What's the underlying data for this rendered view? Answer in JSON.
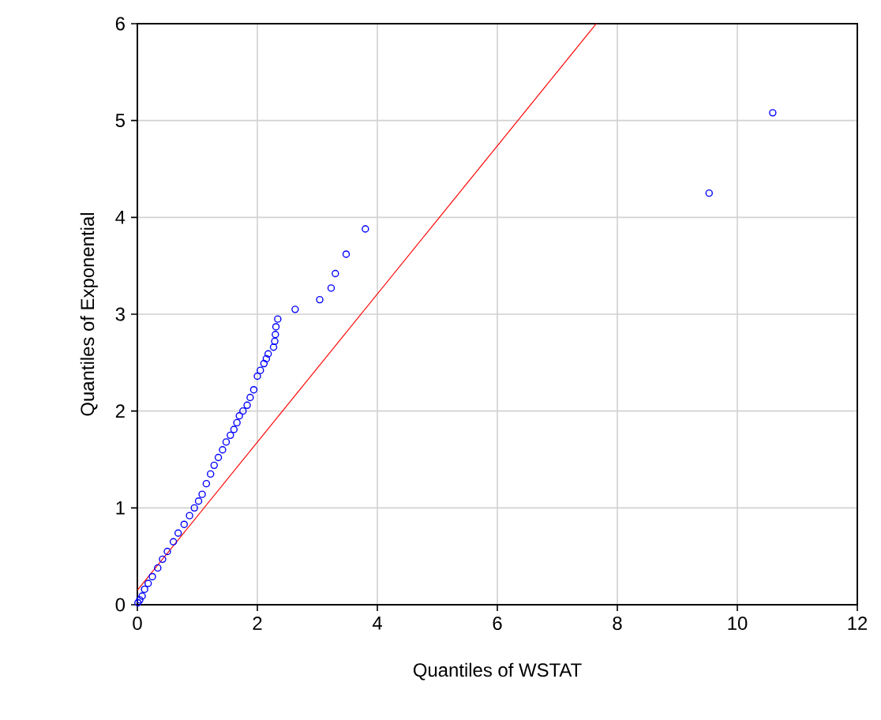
{
  "chart_data": {
    "type": "scatter",
    "xlabel": "Quantiles of WSTAT",
    "ylabel": "Quantiles of Exponential",
    "xlim": [
      0,
      12
    ],
    "ylim": [
      0,
      6
    ],
    "xticks": [
      0,
      2,
      4,
      6,
      8,
      10,
      12
    ],
    "yticks": [
      0,
      1,
      2,
      3,
      4,
      5,
      6
    ],
    "grid": true,
    "series": [
      {
        "marker": "circle",
        "color": "#0000ff",
        "x": [
          0.01,
          0.04,
          0.08,
          0.12,
          0.18,
          0.25,
          0.34,
          0.42,
          0.5,
          0.6,
          0.68,
          0.78,
          0.87,
          0.95,
          1.02,
          1.08,
          1.15,
          1.22,
          1.28,
          1.35,
          1.42,
          1.48,
          1.55,
          1.61,
          1.66,
          1.7,
          1.76,
          1.83,
          1.88,
          1.94,
          2.0,
          2.05,
          2.11,
          2.15,
          2.18,
          2.27,
          2.29,
          2.3,
          2.31,
          2.34,
          2.63,
          3.04,
          3.23,
          3.3,
          3.48,
          3.8,
          9.53,
          10.59
        ],
        "values": [
          0.02,
          0.05,
          0.09,
          0.16,
          0.22,
          0.29,
          0.38,
          0.47,
          0.55,
          0.65,
          0.74,
          0.83,
          0.92,
          1.0,
          1.07,
          1.14,
          1.25,
          1.35,
          1.44,
          1.52,
          1.6,
          1.68,
          1.75,
          1.81,
          1.88,
          1.95,
          2.0,
          2.06,
          2.14,
          2.22,
          2.36,
          2.42,
          2.49,
          2.54,
          2.59,
          2.66,
          2.72,
          2.79,
          2.87,
          2.95,
          3.05,
          3.15,
          3.27,
          3.42,
          3.62,
          3.88,
          4.25,
          5.08
        ]
      },
      {
        "type": "line",
        "marker": "none",
        "color": "#ff0000",
        "x": [
          0,
          7.65
        ],
        "values": [
          0.15,
          6
        ]
      }
    ]
  }
}
